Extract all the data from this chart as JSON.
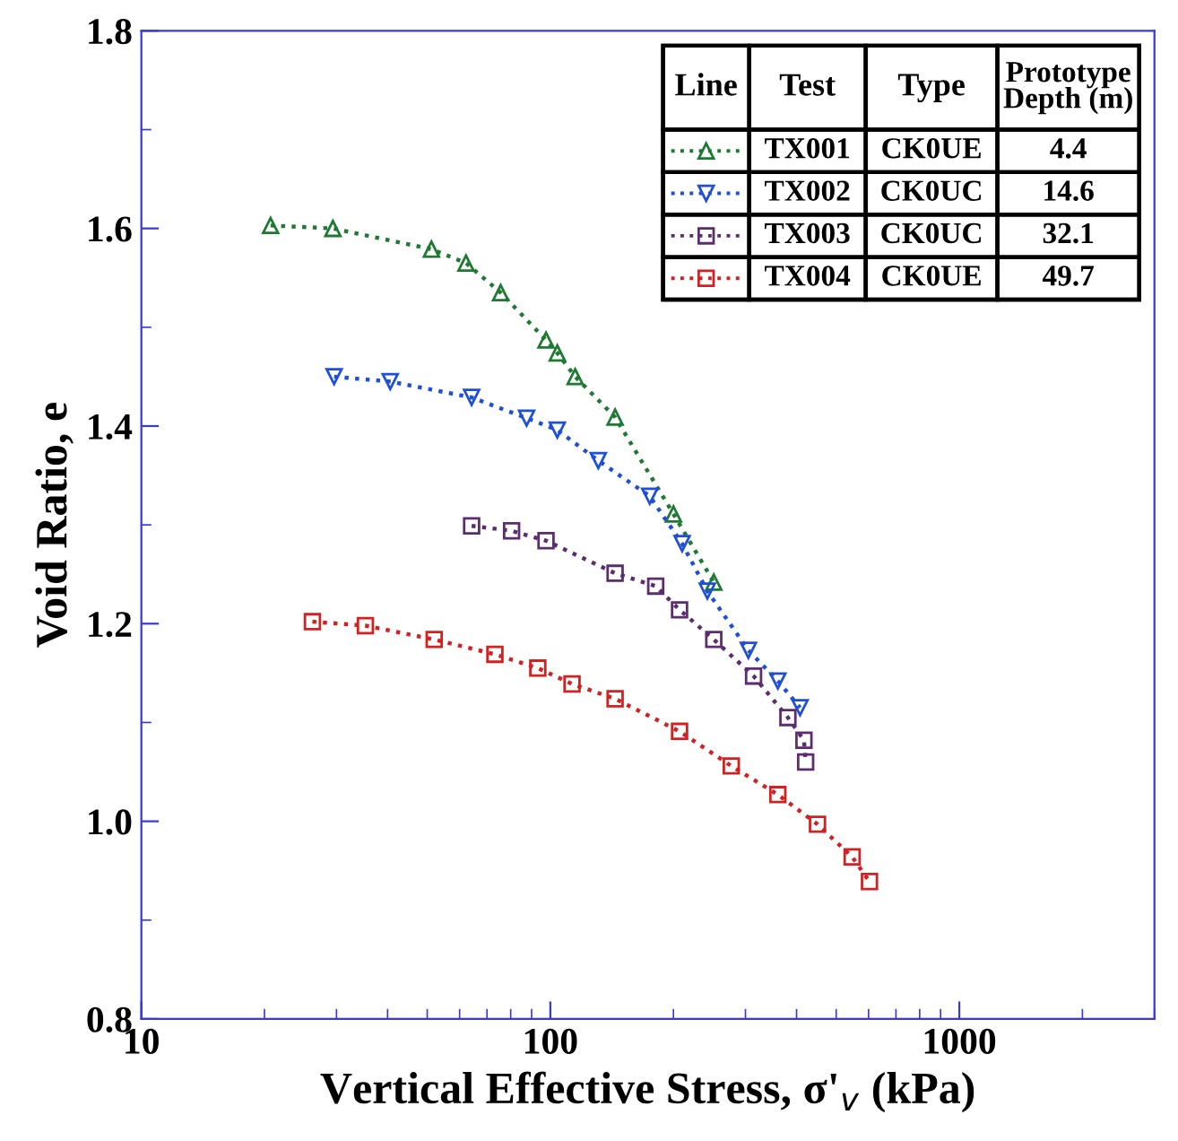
{
  "chart_data": {
    "type": "line",
    "xlabel": "Vertical Effective Stress, σ'$_{v}$ (kPa)",
    "ylabel": "Void Ratio, e",
    "log": "x",
    "xlim": [
      10,
      3000
    ],
    "xticks": [
      10,
      100,
      1000
    ],
    "ylim": [
      0.8,
      1.8
    ],
    "yticks": [
      0.8,
      {
        "value": 1,
        "label": "1.0"
      },
      1.2,
      1.4,
      1.6,
      1.8
    ],
    "grid": false,
    "legend": "top right",
    "line_style": "dotted",
    "annotations": [
      "Line",
      "Test",
      "Type",
      "Prototype\nDepth (m)",
      "CK0UE",
      "4.4",
      "CK0UC",
      "14.6",
      "CK0UC",
      "32.1",
      "CK0UE",
      "49.7"
    ],
    "series": [
      {
        "name": "TX001",
        "color": "#1e7a32",
        "marker": "triangle",
        "x": [
          20.7,
          29.4,
          51.2,
          62.2,
          75.6,
          97.6,
          104,
          115,
          144,
          200,
          251
        ],
        "values": [
          1.603,
          1.6,
          1.579,
          1.565,
          1.535,
          1.487,
          1.474,
          1.45,
          1.409,
          1.311,
          1.242
        ]
      },
      {
        "name": "TX002",
        "color": "#1f4fd8",
        "marker": "triangle_down",
        "x": [
          29.6,
          40.6,
          64.2,
          87.5,
          104,
          131,
          175,
          210,
          242,
          305,
          360,
          408
        ],
        "values": [
          1.45,
          1.445,
          1.429,
          1.408,
          1.396,
          1.365,
          1.329,
          1.281,
          1.233,
          1.173,
          1.142,
          1.115
        ]
      },
      {
        "name": "TX003",
        "color": "#5c2d6e",
        "marker": "square",
        "x": [
          64.2,
          80.4,
          97.6,
          144,
          181,
          207,
          251,
          314,
          381,
          417,
          421
        ],
        "values": [
          1.299,
          1.294,
          1.284,
          1.251,
          1.238,
          1.214,
          1.184,
          1.147,
          1.105,
          1.082,
          1.06
        ]
      },
      {
        "name": "TX004",
        "color": "#d42020",
        "marker": "square",
        "x": [
          26.2,
          35.3,
          52.0,
          73.2,
          93.2,
          113,
          144,
          207,
          277,
          360,
          450,
          547,
          603
        ],
        "values": [
          1.202,
          1.198,
          1.184,
          1.169,
          1.155,
          1.139,
          1.124,
          1.091,
          1.056,
          1.027,
          0.997,
          0.964,
          0.939
        ]
      }
    ]
  }
}
